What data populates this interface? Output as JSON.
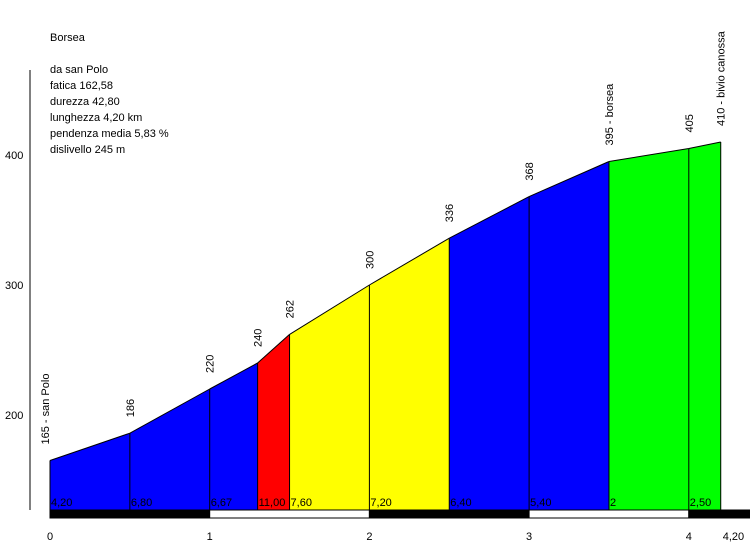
{
  "chart_data": {
    "type": "area",
    "title": "Borsea",
    "info_lines": [
      "da san Polo",
      "fatica 162,58",
      "durezza 42,80",
      "lunghezza 4,20 km",
      "pendenza media 5,83 %",
      "dislivello 245 m"
    ],
    "xlim": [
      0,
      4.2
    ],
    "ylim": [
      135,
      410
    ],
    "y_ticks": [
      200,
      300,
      400
    ],
    "x_ticks": [
      {
        "value": 0,
        "label": "0"
      },
      {
        "value": 1,
        "label": "1"
      },
      {
        "value": 2,
        "label": "2"
      },
      {
        "value": 3,
        "label": "3"
      },
      {
        "value": 4,
        "label": "4"
      },
      {
        "value": 4.2,
        "label": "4,20"
      }
    ],
    "points": [
      {
        "x": 0,
        "y": 165,
        "label": "165 - san Polo"
      },
      {
        "x": 0.5,
        "y": 186,
        "label": "186"
      },
      {
        "x": 1.0,
        "y": 220,
        "label": "220"
      },
      {
        "x": 1.3,
        "y": 240,
        "label": "240"
      },
      {
        "x": 1.5,
        "y": 262,
        "label": "262"
      },
      {
        "x": 2.0,
        "y": 300,
        "label": "300"
      },
      {
        "x": 2.5,
        "y": 336,
        "label": "336"
      },
      {
        "x": 3.0,
        "y": 368,
        "label": "368"
      },
      {
        "x": 3.5,
        "y": 395,
        "label": "395 - borsea"
      },
      {
        "x": 4.0,
        "y": 405,
        "label": "405"
      },
      {
        "x": 4.2,
        "y": 410,
        "label": "410 - bivio canossa"
      }
    ],
    "segments": [
      {
        "x0": 0,
        "x1": 0.5,
        "grade": "4,20",
        "color": "#0000ff"
      },
      {
        "x0": 0.5,
        "x1": 1.0,
        "grade": "6,80",
        "color": "#0000ff"
      },
      {
        "x0": 1.0,
        "x1": 1.3,
        "grade": "6,67",
        "color": "#0000ff"
      },
      {
        "x0": 1.3,
        "x1": 1.5,
        "grade": "11,00",
        "color": "#ff0000"
      },
      {
        "x0": 1.5,
        "x1": 2.0,
        "grade": "7,60",
        "color": "#ffff00"
      },
      {
        "x0": 2.0,
        "x1": 2.5,
        "grade": "7,20",
        "color": "#ffff00"
      },
      {
        "x0": 2.5,
        "x1": 3.0,
        "grade": "6,40",
        "color": "#0000ff"
      },
      {
        "x0": 3.0,
        "x1": 3.5,
        "grade": "5,40",
        "color": "#0000ff"
      },
      {
        "x0": 3.5,
        "x1": 4.0,
        "grade": "2",
        "color": "#00ff00"
      },
      {
        "x0": 4.0,
        "x1": 4.2,
        "grade": "2,50",
        "color": "#00ff00"
      }
    ],
    "km_bar_colors": [
      "#000000",
      "#ffffff"
    ]
  }
}
